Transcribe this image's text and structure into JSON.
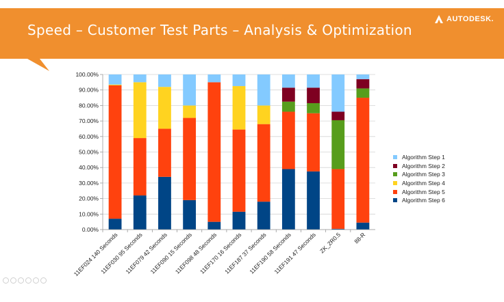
{
  "slide": {
    "title": "Speed – Customer Test Parts – Analysis & Optimization",
    "logo_text": "AUTODESK.",
    "banner_color": "#f08f2e"
  },
  "chart_data": {
    "type": "bar",
    "stacked": true,
    "categories": [
      "11EF024 140 Seconds",
      "11EF030 95 Seconds",
      "11EF079 42 Seconds",
      "11EF090 15 Seconds",
      "11EF098 48 Seconds",
      "11EF170 16 Seconds",
      "11EF187 37 Seconds",
      "11EF190 58 Seconds",
      "11EF191 47 Seconds",
      "ZK_2R0.5",
      "88-R"
    ],
    "series": [
      {
        "name": "Algorithm Step 6",
        "color": "#004586",
        "values": [
          7,
          22,
          34,
          19,
          5,
          11.5,
          18,
          39,
          37.5,
          0.5,
          4.5
        ]
      },
      {
        "name": "Algorithm Step 5",
        "color": "#ff420e",
        "values": [
          86,
          37,
          31,
          53,
          90,
          53,
          50,
          37,
          37.5,
          38.5,
          80.5
        ]
      },
      {
        "name": "Algorithm Step 4",
        "color": "#ffd320",
        "values": [
          0.5,
          36,
          27,
          8,
          0,
          28,
          12,
          0,
          0,
          0,
          0
        ]
      },
      {
        "name": "Algorithm Step 3",
        "color": "#579d1c",
        "values": [
          0,
          0,
          0,
          0,
          0,
          0,
          0,
          6.5,
          6.5,
          31.5,
          6
        ]
      },
      {
        "name": "Algorithm Step 2",
        "color": "#7e0021",
        "values": [
          0,
          0,
          0,
          0,
          0,
          0,
          0,
          9,
          10,
          5.5,
          6
        ]
      },
      {
        "name": "Algorithm Step 1",
        "color": "#83caff",
        "values": [
          6.5,
          5,
          8,
          20,
          5,
          7.5,
          20,
          8.5,
          8.5,
          24,
          3
        ]
      }
    ],
    "legend_order": [
      "Algorithm Step 1",
      "Algorithm Step 2",
      "Algorithm Step 3",
      "Algorithm Step 4",
      "Algorithm Step 5",
      "Algorithm Step 6"
    ],
    "ylim": [
      0,
      100
    ],
    "y_ticks": [
      "0.00%",
      "10.00%",
      "20.00%",
      "30.00%",
      "40.00%",
      "50.00%",
      "60.00%",
      "70.00%",
      "80.00%",
      "90.00%",
      "100.00%"
    ],
    "legend_position": "right",
    "grid": true
  }
}
